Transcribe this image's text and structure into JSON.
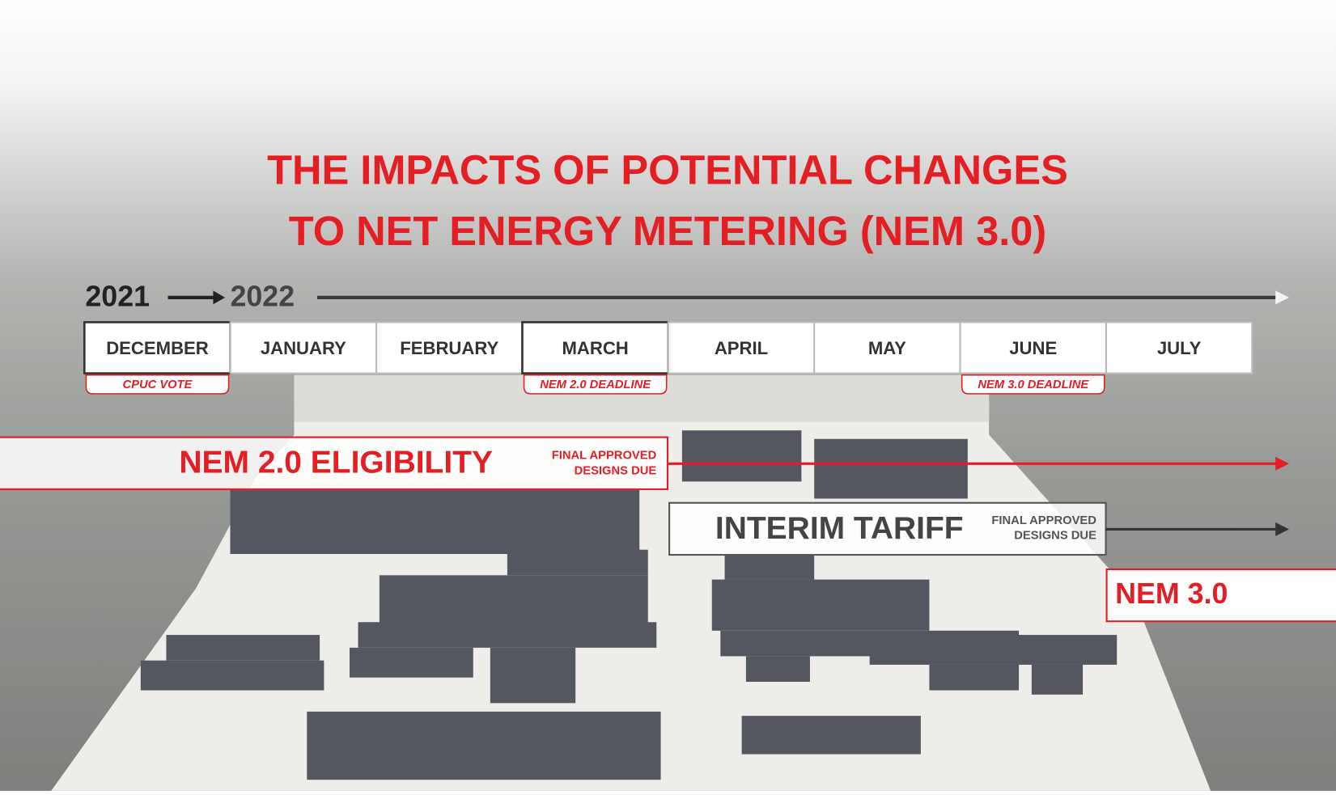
{
  "title": [
    "THE IMPACTS OF POTENTIAL CHANGES",
    "TO NET ENERGY METERING (NEM 3.0)"
  ],
  "years": [
    "2021",
    "2022"
  ],
  "months": [
    "DECEMBER",
    "JANUARY",
    "FEBRUARY",
    "MARCH",
    "APRIL",
    "MAY",
    "JUNE",
    "JULY"
  ],
  "milestones": [
    "CPUC VOTE",
    "NEM 2.0 DEADLINE",
    "NEM 3.0 DEADLINE"
  ],
  "phases": [
    {
      "name": "NEM 2.0 ELIGIBILITY",
      "note": [
        "FINAL APPROVED",
        "DESIGNS DUE"
      ]
    },
    {
      "name": "INTERIM TARIFF",
      "note": [
        "FINAL APPROVED",
        "DESIGNS DUE"
      ]
    },
    {
      "name": "NEM 3.0"
    }
  ]
}
